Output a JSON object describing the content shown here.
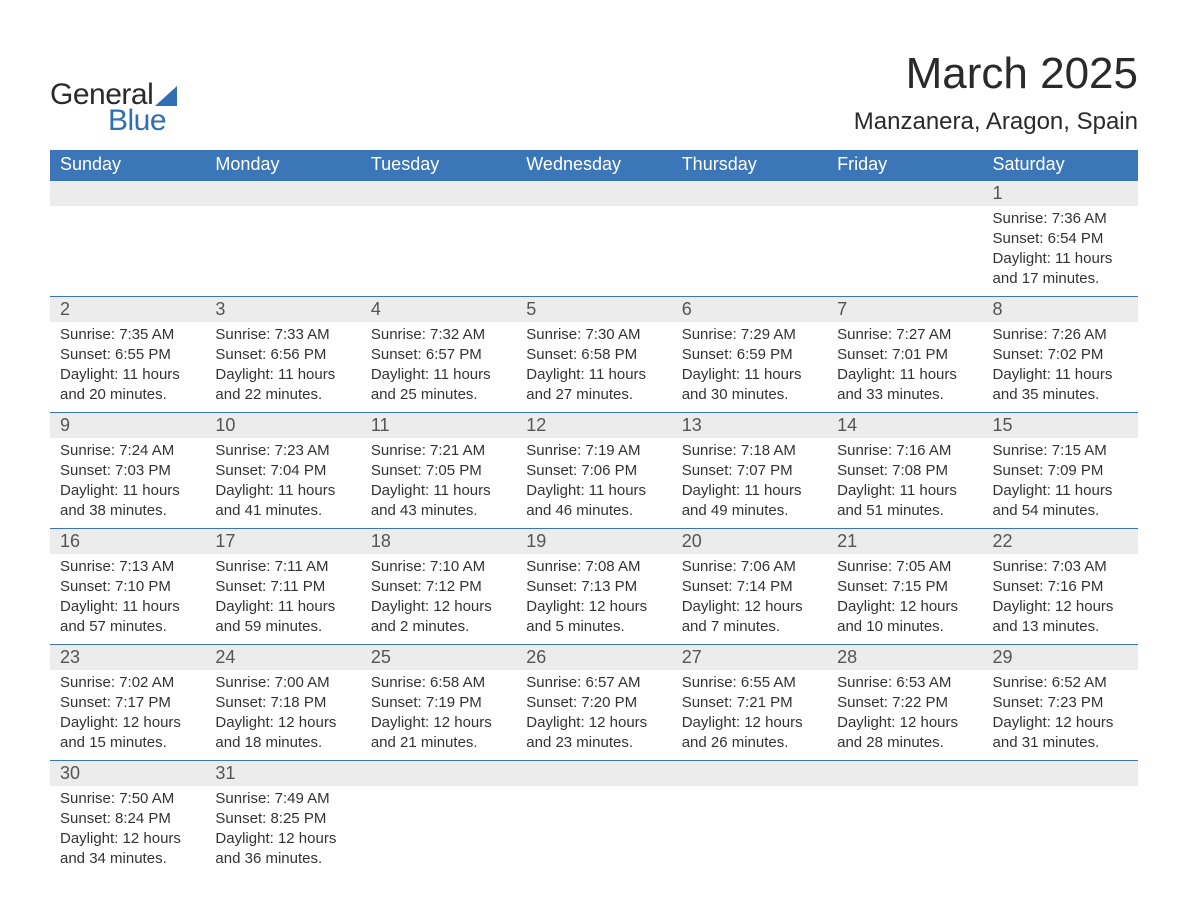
{
  "logo": {
    "text1": "General",
    "text2": "Blue",
    "triangle_color": "#2f6fb3"
  },
  "title": "March 2025",
  "location": "Manzanera, Aragon, Spain",
  "colors": {
    "header_bg": "#3b77b8",
    "header_text": "#ffffff",
    "daynum_bg": "#ececec",
    "daynum_text": "#555555",
    "body_text": "#333333",
    "rule": "#3b77b8",
    "page_bg": "#ffffff"
  },
  "fonts": {
    "title_size": 44,
    "location_size": 24,
    "header_size": 18,
    "daynum_size": 18,
    "cell_size": 15
  },
  "day_headers": [
    "Sunday",
    "Monday",
    "Tuesday",
    "Wednesday",
    "Thursday",
    "Friday",
    "Saturday"
  ],
  "weeks": [
    [
      null,
      null,
      null,
      null,
      null,
      null,
      {
        "n": "1",
        "sunrise": "7:36 AM",
        "sunset": "6:54 PM",
        "daylight": "11 hours and 17 minutes."
      }
    ],
    [
      {
        "n": "2",
        "sunrise": "7:35 AM",
        "sunset": "6:55 PM",
        "daylight": "11 hours and 20 minutes."
      },
      {
        "n": "3",
        "sunrise": "7:33 AM",
        "sunset": "6:56 PM",
        "daylight": "11 hours and 22 minutes."
      },
      {
        "n": "4",
        "sunrise": "7:32 AM",
        "sunset": "6:57 PM",
        "daylight": "11 hours and 25 minutes."
      },
      {
        "n": "5",
        "sunrise": "7:30 AM",
        "sunset": "6:58 PM",
        "daylight": "11 hours and 27 minutes."
      },
      {
        "n": "6",
        "sunrise": "7:29 AM",
        "sunset": "6:59 PM",
        "daylight": "11 hours and 30 minutes."
      },
      {
        "n": "7",
        "sunrise": "7:27 AM",
        "sunset": "7:01 PM",
        "daylight": "11 hours and 33 minutes."
      },
      {
        "n": "8",
        "sunrise": "7:26 AM",
        "sunset": "7:02 PM",
        "daylight": "11 hours and 35 minutes."
      }
    ],
    [
      {
        "n": "9",
        "sunrise": "7:24 AM",
        "sunset": "7:03 PM",
        "daylight": "11 hours and 38 minutes."
      },
      {
        "n": "10",
        "sunrise": "7:23 AM",
        "sunset": "7:04 PM",
        "daylight": "11 hours and 41 minutes."
      },
      {
        "n": "11",
        "sunrise": "7:21 AM",
        "sunset": "7:05 PM",
        "daylight": "11 hours and 43 minutes."
      },
      {
        "n": "12",
        "sunrise": "7:19 AM",
        "sunset": "7:06 PM",
        "daylight": "11 hours and 46 minutes."
      },
      {
        "n": "13",
        "sunrise": "7:18 AM",
        "sunset": "7:07 PM",
        "daylight": "11 hours and 49 minutes."
      },
      {
        "n": "14",
        "sunrise": "7:16 AM",
        "sunset": "7:08 PM",
        "daylight": "11 hours and 51 minutes."
      },
      {
        "n": "15",
        "sunrise": "7:15 AM",
        "sunset": "7:09 PM",
        "daylight": "11 hours and 54 minutes."
      }
    ],
    [
      {
        "n": "16",
        "sunrise": "7:13 AM",
        "sunset": "7:10 PM",
        "daylight": "11 hours and 57 minutes."
      },
      {
        "n": "17",
        "sunrise": "7:11 AM",
        "sunset": "7:11 PM",
        "daylight": "11 hours and 59 minutes."
      },
      {
        "n": "18",
        "sunrise": "7:10 AM",
        "sunset": "7:12 PM",
        "daylight": "12 hours and 2 minutes."
      },
      {
        "n": "19",
        "sunrise": "7:08 AM",
        "sunset": "7:13 PM",
        "daylight": "12 hours and 5 minutes."
      },
      {
        "n": "20",
        "sunrise": "7:06 AM",
        "sunset": "7:14 PM",
        "daylight": "12 hours and 7 minutes."
      },
      {
        "n": "21",
        "sunrise": "7:05 AM",
        "sunset": "7:15 PM",
        "daylight": "12 hours and 10 minutes."
      },
      {
        "n": "22",
        "sunrise": "7:03 AM",
        "sunset": "7:16 PM",
        "daylight": "12 hours and 13 minutes."
      }
    ],
    [
      {
        "n": "23",
        "sunrise": "7:02 AM",
        "sunset": "7:17 PM",
        "daylight": "12 hours and 15 minutes."
      },
      {
        "n": "24",
        "sunrise": "7:00 AM",
        "sunset": "7:18 PM",
        "daylight": "12 hours and 18 minutes."
      },
      {
        "n": "25",
        "sunrise": "6:58 AM",
        "sunset": "7:19 PM",
        "daylight": "12 hours and 21 minutes."
      },
      {
        "n": "26",
        "sunrise": "6:57 AM",
        "sunset": "7:20 PM",
        "daylight": "12 hours and 23 minutes."
      },
      {
        "n": "27",
        "sunrise": "6:55 AM",
        "sunset": "7:21 PM",
        "daylight": "12 hours and 26 minutes."
      },
      {
        "n": "28",
        "sunrise": "6:53 AM",
        "sunset": "7:22 PM",
        "daylight": "12 hours and 28 minutes."
      },
      {
        "n": "29",
        "sunrise": "6:52 AM",
        "sunset": "7:23 PM",
        "daylight": "12 hours and 31 minutes."
      }
    ],
    [
      {
        "n": "30",
        "sunrise": "7:50 AM",
        "sunset": "8:24 PM",
        "daylight": "12 hours and 34 minutes."
      },
      {
        "n": "31",
        "sunrise": "7:49 AM",
        "sunset": "8:25 PM",
        "daylight": "12 hours and 36 minutes."
      },
      null,
      null,
      null,
      null,
      null
    ]
  ],
  "labels": {
    "sunrise": "Sunrise: ",
    "sunset": "Sunset: ",
    "daylight": "Daylight: "
  }
}
